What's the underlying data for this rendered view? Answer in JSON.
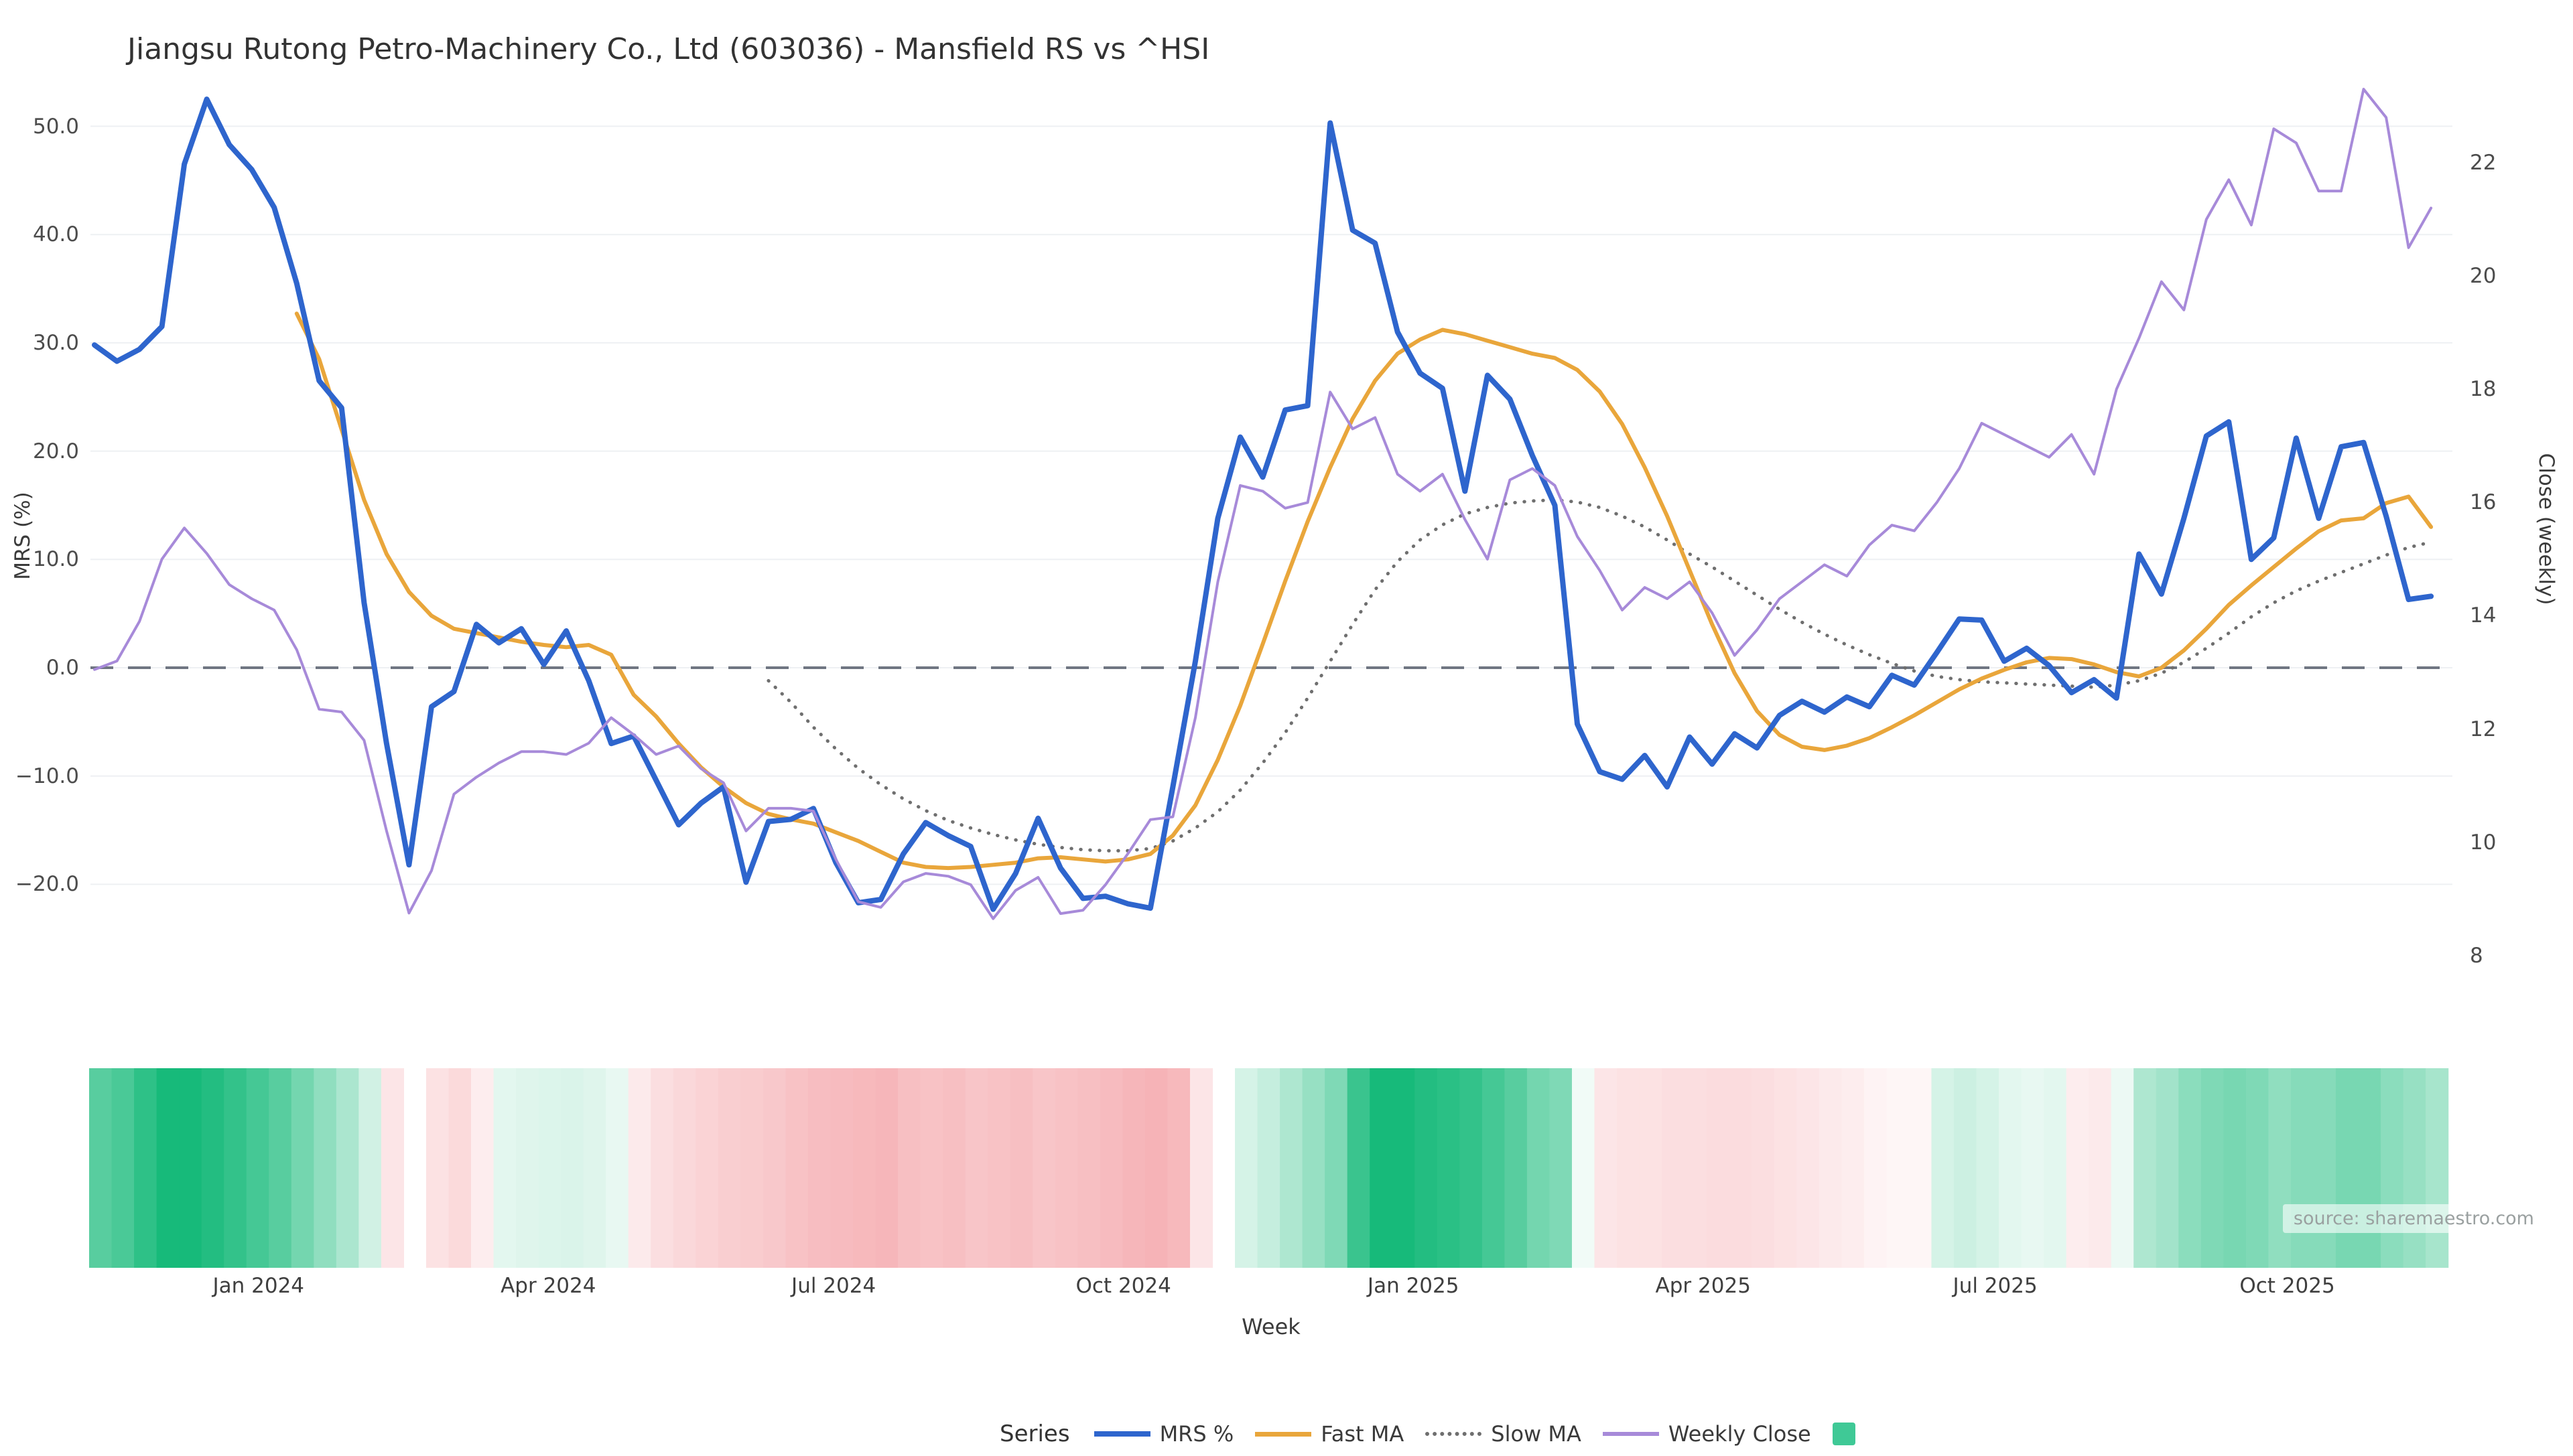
{
  "title": "Jiangsu Rutong Petro-Machinery Co., Ltd (603036) - Mansfield RS vs ^HSI",
  "source_note": "source: sharemaestro.com",
  "axes": {
    "x_label": "Week",
    "left_label": "MRS (%)",
    "right_label": "Close (weekly)",
    "left_tick_labels": [
      "50.0",
      "40.0",
      "30.0",
      "20.0",
      "10.0",
      "0.0",
      "−10.0",
      "−20.0"
    ],
    "left_tick_values": [
      50,
      40,
      30,
      20,
      10,
      0,
      -10,
      -20
    ],
    "right_tick_labels": [
      "22",
      "20",
      "18",
      "16",
      "14",
      "12",
      "10",
      "8"
    ],
    "right_tick_values": [
      22,
      20,
      18,
      16,
      14,
      12,
      10,
      8
    ]
  },
  "legend": {
    "title": "Series",
    "items": [
      {
        "label": "MRS %",
        "swatch": "line",
        "color": "#2e65cd",
        "thickness": 8
      },
      {
        "label": "Fast MA",
        "swatch": "line",
        "color": "#e9a63b",
        "thickness": 7
      },
      {
        "label": "Slow MA",
        "swatch": "dotted",
        "color": "#6f6f6f",
        "thickness": 6
      },
      {
        "label": "Weekly Close",
        "swatch": "line",
        "color": "#a78ad9",
        "thickness": 6
      },
      {
        "label": "",
        "swatch": "square",
        "color": "#3fc996"
      }
    ]
  },
  "chart_data": {
    "type": "line",
    "x_unit": "week_index",
    "n_weeks": 105,
    "x_ticks": [
      {
        "label": "Jan 2024",
        "week": 7.3
      },
      {
        "label": "Apr 2024",
        "week": 20.2
      },
      {
        "label": "Jul 2024",
        "week": 32.9
      },
      {
        "label": "Oct 2024",
        "week": 45.8
      },
      {
        "label": "Jan 2025",
        "week": 58.7
      },
      {
        "label": "Apr 2025",
        "week": 71.6
      },
      {
        "label": "Jul 2025",
        "week": 84.6
      },
      {
        "label": "Oct 2025",
        "week": 97.6
      }
    ],
    "left_axis": {
      "label": "MRS (%)",
      "ticks": [
        50,
        40,
        30,
        20,
        10,
        0,
        -10,
        -20
      ],
      "zero_dashed_line": 0
    },
    "right_axis": {
      "label": "Close (weekly)",
      "ticks": [
        22,
        20,
        18,
        16,
        14,
        12,
        10,
        8
      ]
    },
    "grid": true,
    "legend_position": "bottom",
    "series": [
      {
        "name": "MRS %",
        "axis": "left",
        "color": "#2e65cd",
        "style": "solid",
        "width": 8,
        "values": [
          29.8,
          28.3,
          29.4,
          31.5,
          46.5,
          52.5,
          48.3,
          46.0,
          42.5,
          35.5,
          26.5,
          24.0,
          6.0,
          -7.0,
          -18.2,
          -3.6,
          -2.2,
          4.0,
          2.3,
          3.6,
          0.3,
          3.4,
          -1.2,
          -7.0,
          -6.3,
          -10.4,
          -14.5,
          -12.5,
          -11.0,
          -19.8,
          -14.2,
          -14.0,
          -13.0,
          -18.0,
          -21.7,
          -21.4,
          -17.2,
          -14.3,
          -15.5,
          -16.5,
          -22.3,
          -19.0,
          -13.9,
          -18.5,
          -21.3,
          -21.1,
          -21.8,
          -22.2,
          -11.0,
          0.6,
          13.8,
          21.3,
          17.6,
          23.8,
          24.2,
          50.3,
          40.4,
          39.2,
          31.0,
          27.2,
          25.8,
          16.3,
          27.0,
          24.8,
          19.6,
          15.0,
          -5.2,
          -9.6,
          -10.3,
          -8.1,
          -11.0,
          -6.4,
          -8.9,
          -6.1,
          -7.4,
          -4.4,
          -3.1,
          -4.1,
          -2.7,
          -3.6,
          -0.7,
          -1.6,
          1.4,
          4.5,
          4.4,
          0.6,
          1.8,
          0.2,
          -2.3,
          -1.1,
          -2.8,
          10.5,
          6.8,
          13.8,
          21.4,
          22.7,
          10.0,
          12.0,
          21.2,
          13.8,
          20.4,
          20.8,
          14.0,
          6.3,
          6.6
        ]
      },
      {
        "name": "Fast MA",
        "axis": "left",
        "color": "#e9a63b",
        "style": "solid",
        "width": 6,
        "values": [
          null,
          null,
          null,
          null,
          null,
          null,
          null,
          null,
          null,
          32.7,
          28.5,
          22.0,
          15.5,
          10.5,
          7.0,
          4.8,
          3.6,
          3.2,
          2.8,
          2.4,
          2.1,
          1.9,
          2.1,
          1.2,
          -2.5,
          -4.5,
          -7.0,
          -9.2,
          -11.0,
          -12.5,
          -13.5,
          -14.0,
          -14.4,
          -15.2,
          -16.0,
          -17.0,
          -18.0,
          -18.4,
          -18.5,
          -18.4,
          -18.2,
          -18.0,
          -17.6,
          -17.5,
          -17.7,
          -17.9,
          -17.7,
          -17.2,
          -15.5,
          -12.7,
          -8.5,
          -3.5,
          2.2,
          8.0,
          13.5,
          18.5,
          23.0,
          26.5,
          29.0,
          30.3,
          31.2,
          30.8,
          30.2,
          29.6,
          29.0,
          28.6,
          27.5,
          25.5,
          22.5,
          18.5,
          14.0,
          9.0,
          4.0,
          -0.5,
          -4.0,
          -6.2,
          -7.3,
          -7.6,
          -7.2,
          -6.5,
          -5.5,
          -4.4,
          -3.2,
          -2.0,
          -1.0,
          -0.2,
          0.5,
          0.9,
          0.8,
          0.3,
          -0.4,
          -0.8,
          0.0,
          1.6,
          3.6,
          5.8,
          7.6,
          9.3,
          11.0,
          12.6,
          13.6,
          13.8,
          15.2,
          15.8,
          13.0
        ]
      },
      {
        "name": "Slow MA",
        "axis": "left",
        "color": "#6f6f6f",
        "style": "dotted",
        "width": 5,
        "values": [
          null,
          null,
          null,
          null,
          null,
          null,
          null,
          null,
          null,
          null,
          null,
          null,
          null,
          null,
          null,
          null,
          null,
          null,
          null,
          null,
          null,
          null,
          null,
          null,
          null,
          null,
          null,
          null,
          null,
          null,
          -1.2,
          -3.2,
          -5.5,
          -7.5,
          -9.3,
          -10.8,
          -12.1,
          -13.2,
          -14.1,
          -14.8,
          -15.4,
          -15.9,
          -16.3,
          -16.6,
          -16.8,
          -16.9,
          -16.9,
          -16.7,
          -16.0,
          -14.8,
          -13.3,
          -11.3,
          -8.8,
          -6.0,
          -2.8,
          0.6,
          4.0,
          7.2,
          9.8,
          11.8,
          13.2,
          14.2,
          14.8,
          15.2,
          15.4,
          15.5,
          15.3,
          14.8,
          14.0,
          13.0,
          11.8,
          10.5,
          9.3,
          8.0,
          6.7,
          5.4,
          4.2,
          3.1,
          2.1,
          1.2,
          0.4,
          -0.3,
          -0.8,
          -1.1,
          -1.3,
          -1.4,
          -1.5,
          -1.6,
          -1.7,
          -1.8,
          -1.6,
          -1.2,
          -0.5,
          0.5,
          1.8,
          3.2,
          4.7,
          6.0,
          7.1,
          8.0,
          8.8,
          9.6,
          10.4,
          11.1,
          11.6
        ]
      },
      {
        "name": "Weekly Close",
        "axis": "right",
        "color": "#a78ad9",
        "style": "solid",
        "width": 4,
        "values": [
          13.05,
          13.2,
          13.9,
          15.0,
          15.55,
          15.1,
          14.55,
          14.3,
          14.1,
          13.4,
          12.35,
          12.3,
          11.8,
          10.2,
          8.75,
          9.5,
          10.85,
          11.15,
          11.4,
          11.6,
          11.6,
          11.55,
          11.75,
          12.2,
          11.9,
          11.55,
          11.7,
          11.3,
          11.05,
          10.2,
          10.6,
          10.6,
          10.55,
          9.7,
          8.95,
          8.85,
          9.3,
          9.45,
          9.4,
          9.25,
          8.65,
          9.15,
          9.38,
          8.74,
          8.8,
          9.25,
          9.8,
          10.4,
          10.45,
          12.2,
          14.6,
          16.3,
          16.2,
          15.9,
          16.0,
          17.95,
          17.3,
          17.5,
          16.5,
          16.2,
          16.5,
          15.7,
          15.0,
          16.4,
          16.6,
          16.3,
          15.4,
          14.8,
          14.1,
          14.5,
          14.3,
          14.6,
          14.05,
          13.3,
          13.75,
          14.3,
          14.6,
          14.9,
          14.7,
          15.25,
          15.6,
          15.5,
          16.0,
          16.6,
          17.4,
          17.2,
          17.0,
          16.8,
          17.2,
          16.5,
          18.0,
          18.9,
          19.9,
          19.4,
          21.0,
          21.7,
          20.9,
          22.6,
          22.35,
          21.5,
          21.5,
          23.3,
          22.8,
          20.5,
          21.2
        ]
      }
    ],
    "heatmap": {
      "description": "weekly strength strip under chart, green positive / red negative, null = missing week (white gap)",
      "positive_color": "#17ba7a",
      "negative_color": "#f18a90",
      "values": [
        0.72,
        0.78,
        0.9,
        1.0,
        1.0,
        0.95,
        0.88,
        0.8,
        0.72,
        0.6,
        0.48,
        0.36,
        0.2,
        -0.22,
        null,
        -0.25,
        -0.32,
        -0.15,
        0.12,
        0.14,
        0.15,
        0.16,
        0.14,
        0.1,
        -0.18,
        -0.28,
        -0.33,
        -0.38,
        -0.42,
        -0.44,
        -0.47,
        -0.52,
        -0.56,
        -0.58,
        -0.6,
        -0.62,
        -0.55,
        -0.52,
        -0.55,
        -0.5,
        -0.52,
        -0.55,
        -0.5,
        -0.52,
        -0.55,
        -0.58,
        -0.62,
        -0.65,
        -0.6,
        -0.22,
        null,
        0.18,
        0.25,
        0.35,
        0.45,
        0.55,
        0.85,
        1.0,
        1.0,
        0.95,
        0.92,
        0.88,
        0.8,
        0.72,
        0.6,
        0.55,
        0.06,
        -0.22,
        -0.25,
        -0.25,
        -0.28,
        -0.28,
        -0.3,
        -0.3,
        -0.28,
        -0.25,
        -0.22,
        -0.18,
        -0.15,
        -0.1,
        -0.08,
        -0.08,
        0.18,
        0.22,
        0.18,
        0.12,
        0.1,
        0.12,
        -0.15,
        -0.18,
        0.08,
        0.35,
        0.4,
        0.5,
        0.55,
        0.58,
        0.55,
        0.48,
        0.52,
        0.52,
        0.58,
        0.58,
        0.5,
        0.45,
        0.38
      ]
    },
    "zero_line_color": "#707682",
    "grid_color": "#eef0f3"
  }
}
